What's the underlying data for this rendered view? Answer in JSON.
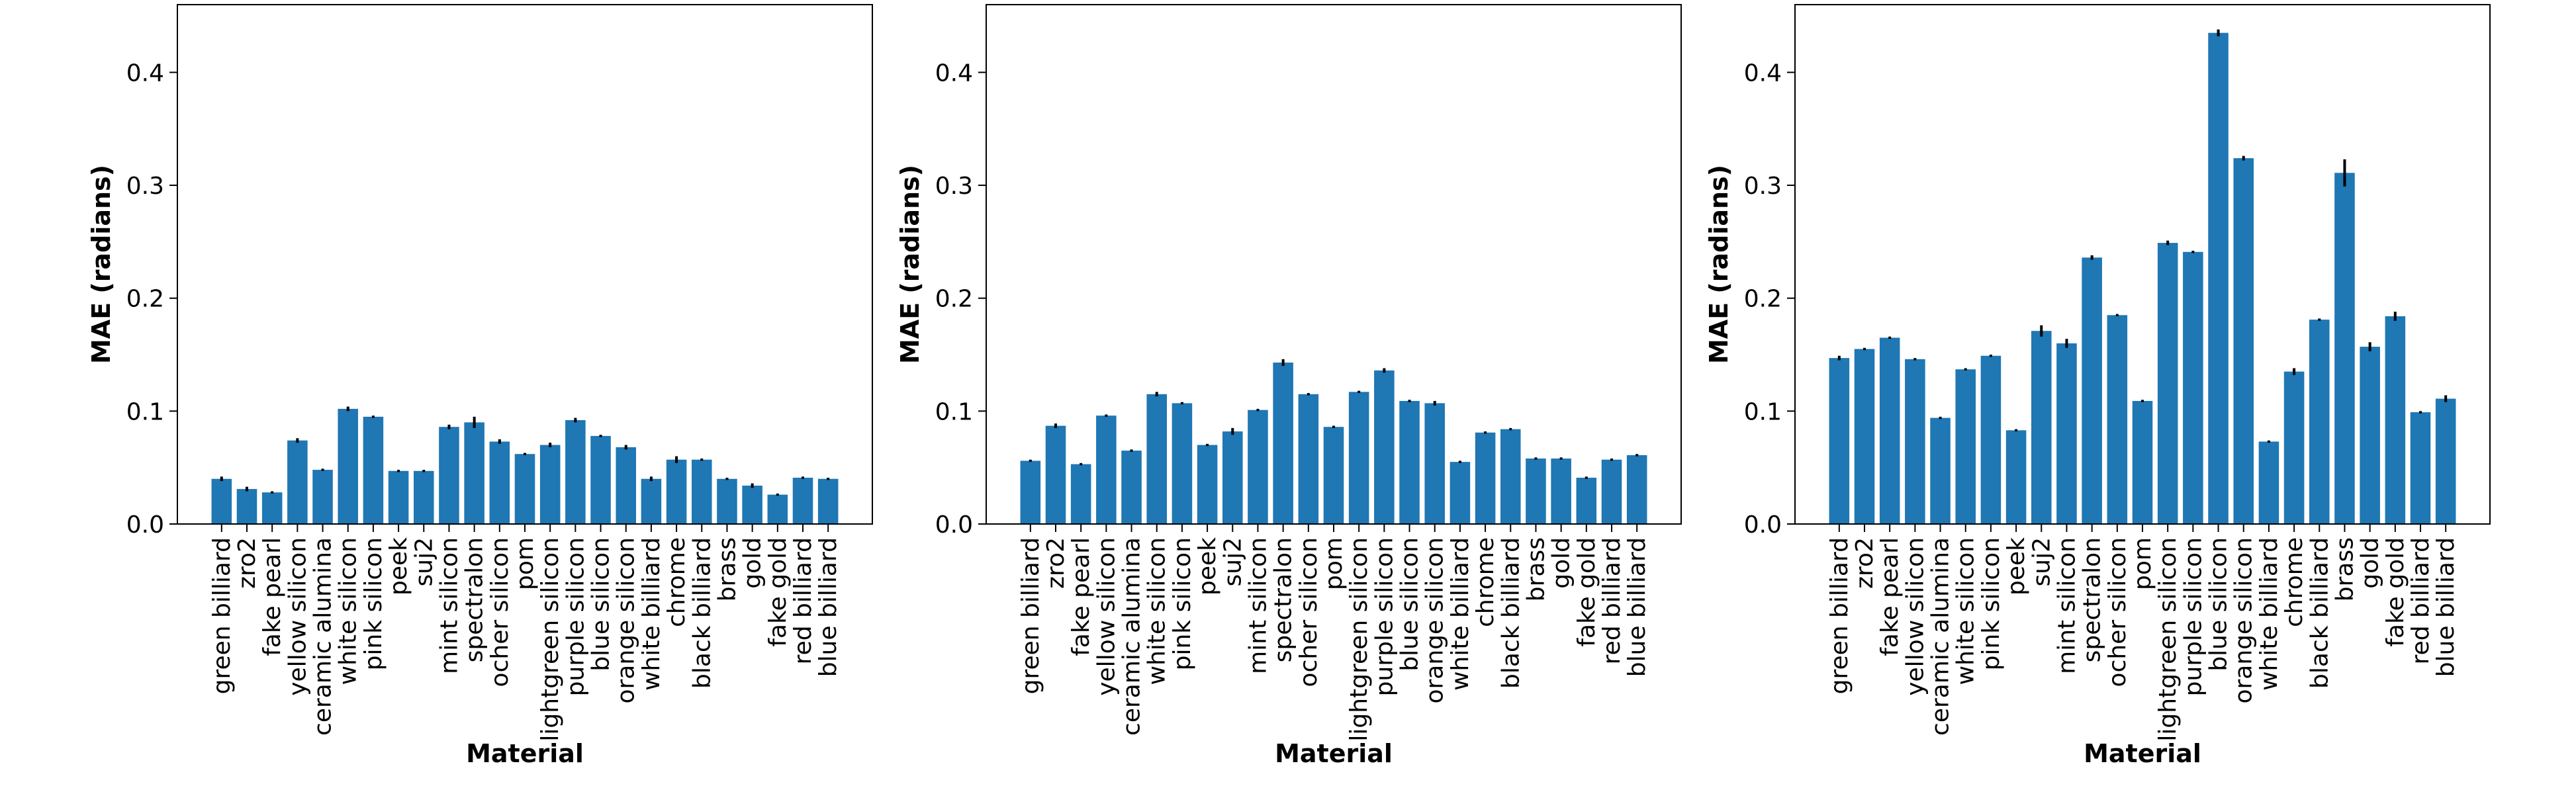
{
  "chart_data": [
    {
      "type": "bar",
      "xlabel": "Material",
      "ylabel": "MAE (radians)",
      "ylim": [
        0,
        0.46
      ],
      "yticks": [
        "0.0",
        "0.1",
        "0.2",
        "0.3",
        "0.4"
      ],
      "bar_color": "#1f77b4",
      "categories": [
        "green billiard",
        "zro2",
        "fake pearl",
        "yellow silicon",
        "ceramic alumina",
        "white silicon",
        "pink silicon",
        "peek",
        "suj2",
        "mint silicon",
        "spectralon",
        "ocher silicon",
        "pom",
        "lightgreen silicon",
        "purple silicon",
        "blue silicon",
        "orange silicon",
        "white billiard",
        "chrome",
        "black billiard",
        "brass",
        "gold",
        "fake gold",
        "red billiard",
        "blue billiard"
      ],
      "values": [
        0.04,
        0.031,
        0.028,
        0.074,
        0.048,
        0.102,
        0.095,
        0.047,
        0.047,
        0.086,
        0.09,
        0.073,
        0.062,
        0.07,
        0.092,
        0.078,
        0.068,
        0.04,
        0.057,
        0.057,
        0.04,
        0.034,
        0.026,
        0.041,
        0.04
      ],
      "errors": [
        0.002,
        0.002,
        0.001,
        0.002,
        0.001,
        0.002,
        0.001,
        0.001,
        0.001,
        0.002,
        0.005,
        0.002,
        0.001,
        0.002,
        0.002,
        0.001,
        0.002,
        0.002,
        0.003,
        0.001,
        0.001,
        0.002,
        0.001,
        0.001,
        0.001
      ]
    },
    {
      "type": "bar",
      "xlabel": "Material",
      "ylabel": "MAE (radians)",
      "ylim": [
        0,
        0.46
      ],
      "yticks": [
        "0.0",
        "0.1",
        "0.2",
        "0.3",
        "0.4"
      ],
      "bar_color": "#1f77b4",
      "categories": [
        "green billiard",
        "zro2",
        "fake pearl",
        "yellow silicon",
        "ceramic alumina",
        "white silicon",
        "pink silicon",
        "peek",
        "suj2",
        "mint silicon",
        "spectralon",
        "ocher silicon",
        "pom",
        "lightgreen silicon",
        "purple silicon",
        "blue silicon",
        "orange silicon",
        "white billiard",
        "chrome",
        "black billiard",
        "brass",
        "gold",
        "fake gold",
        "red billiard",
        "blue billiard"
      ],
      "values": [
        0.056,
        0.087,
        0.053,
        0.096,
        0.065,
        0.115,
        0.107,
        0.07,
        0.082,
        0.101,
        0.143,
        0.115,
        0.086,
        0.117,
        0.136,
        0.109,
        0.107,
        0.055,
        0.081,
        0.084,
        0.058,
        0.058,
        0.041,
        0.057,
        0.061
      ],
      "errors": [
        0.001,
        0.002,
        0.001,
        0.001,
        0.001,
        0.002,
        0.001,
        0.001,
        0.003,
        0.001,
        0.003,
        0.001,
        0.001,
        0.001,
        0.002,
        0.001,
        0.002,
        0.001,
        0.001,
        0.001,
        0.001,
        0.001,
        0.001,
        0.001,
        0.001
      ]
    },
    {
      "type": "bar",
      "xlabel": "Material",
      "ylabel": "MAE (radians)",
      "ylim": [
        0,
        0.46
      ],
      "yticks": [
        "0.0",
        "0.1",
        "0.2",
        "0.3",
        "0.4"
      ],
      "bar_color": "#1f77b4",
      "categories": [
        "green billiard",
        "zro2",
        "fake pearl",
        "yellow silicon",
        "ceramic alumina",
        "white silicon",
        "pink silicon",
        "peek",
        "suj2",
        "mint silicon",
        "spectralon",
        "ocher silicon",
        "pom",
        "lightgreen silicon",
        "purple silicon",
        "blue silicon",
        "orange silicon",
        "white billiard",
        "chrome",
        "black billiard",
        "brass",
        "gold",
        "fake gold",
        "red billiard",
        "blue billiard"
      ],
      "values": [
        0.147,
        0.155,
        0.165,
        0.146,
        0.094,
        0.137,
        0.149,
        0.083,
        0.171,
        0.16,
        0.236,
        0.185,
        0.109,
        0.249,
        0.241,
        0.435,
        0.324,
        0.073,
        0.135,
        0.181,
        0.311,
        0.157,
        0.184,
        0.099,
        0.111
      ],
      "errors": [
        0.002,
        0.001,
        0.001,
        0.001,
        0.001,
        0.001,
        0.001,
        0.001,
        0.005,
        0.004,
        0.002,
        0.001,
        0.001,
        0.002,
        0.001,
        0.003,
        0.002,
        0.001,
        0.003,
        0.001,
        0.012,
        0.004,
        0.004,
        0.001,
        0.003
      ]
    }
  ]
}
